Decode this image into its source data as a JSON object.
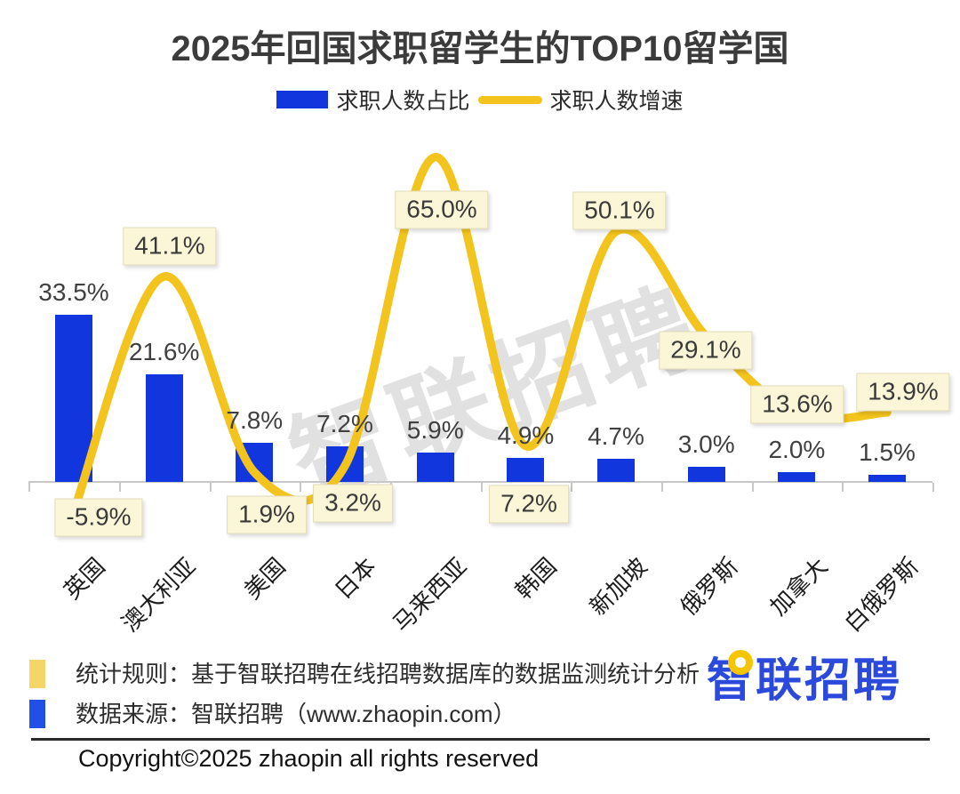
{
  "title": "2025年回国求职留学生的TOP10留学国",
  "legend": {
    "bar_label": "求职人数占比",
    "line_label": "求职人数增速"
  },
  "watermark": "智联招聘",
  "chart_data": {
    "type": "bar",
    "subtype": "bar-line combo",
    "categories": [
      "英国",
      "澳大利亚",
      "美国",
      "日本",
      "马来西亚",
      "韩国",
      "新加坡",
      "俄罗斯",
      "加拿大",
      "白俄罗斯"
    ],
    "series": [
      {
        "name": "求职人数占比",
        "type": "bar",
        "unit": "%",
        "values": [
          33.5,
          21.6,
          7.8,
          7.2,
          5.9,
          4.9,
          4.7,
          3.0,
          2.0,
          1.5
        ]
      },
      {
        "name": "求职人数增速",
        "type": "line",
        "unit": "%",
        "values": [
          -5.9,
          41.1,
          1.9,
          3.2,
          65.0,
          7.2,
          50.1,
          29.1,
          13.6,
          13.9
        ]
      }
    ],
    "title": "2025年回国求职留学生的TOP10留学国",
    "xlabel": "",
    "ylabel": "",
    "value_axis_visible": false,
    "grid": false,
    "legend_position": "top",
    "data_label_format": "0.0%"
  },
  "footer": {
    "note1": "统计规则：基于智联招聘在线招聘数据库的数据监测统计分析",
    "note2": "数据来源：智联招聘（www.zhaopin.com）",
    "logo_text": "智联招聘",
    "copyright": "Copyright©2025 zhaopin all rights reserved"
  },
  "colors": {
    "bar_blue": "#1236DE",
    "line_gold": "#F3C41D",
    "label_box_bg": "#FCF6D8",
    "title_gray": "#3b3b3b",
    "logo_blue": "#2B49DB",
    "axis_gray": "#c8c8c8"
  }
}
